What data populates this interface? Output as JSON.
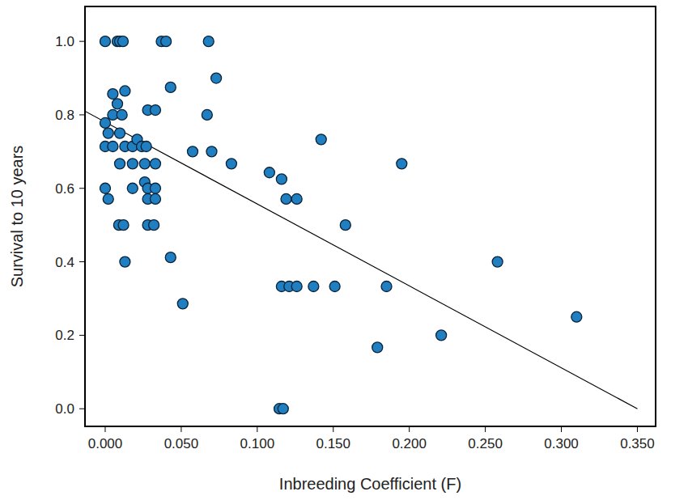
{
  "chart_data": {
    "type": "scatter",
    "x_label": "Inbreeding Coefficient (F)",
    "y_label": "Survival to 10 years",
    "xlim": [
      -0.0133,
      0.362
    ],
    "ylim": [
      -0.048,
      1.095
    ],
    "xticks": [
      {
        "value": 0,
        "label": "0.000"
      },
      {
        "value": 0.05,
        "label": "0.050"
      },
      {
        "value": 0.1,
        "label": "0.100"
      },
      {
        "value": 0.15,
        "label": "0.150"
      },
      {
        "value": 0.2,
        "label": "0.200"
      },
      {
        "value": 0.25,
        "label": "0.250"
      },
      {
        "value": 0.3,
        "label": "0.300"
      },
      {
        "value": 0.35,
        "label": "0.350"
      }
    ],
    "yticks": [
      {
        "value": 0,
        "label": "0.0"
      },
      {
        "value": 0.2,
        "label": "0.2"
      },
      {
        "value": 0.4,
        "label": "0.4"
      },
      {
        "value": 0.6,
        "label": "0.6"
      },
      {
        "value": 0.8,
        "label": "0.8"
      },
      {
        "value": 1,
        "label": "1.0"
      }
    ],
    "grid": false,
    "series": [
      {
        "type": "scatter",
        "color": "#1f7fc1",
        "marker": "circle",
        "x": [
          0,
          0.008,
          0.0096,
          0.0117,
          0.037,
          0.04,
          0.068,
          0.005,
          0.013,
          0.043,
          0.073,
          0,
          0.008,
          0.005,
          0.011,
          0.028,
          0.033,
          0.067,
          0.002,
          0.0096,
          0,
          0.005,
          0.013,
          0.018,
          0.021,
          0.024,
          0.027,
          0.0096,
          0.018,
          0.026,
          0.033,
          0.0575,
          0.07,
          0.083,
          0.026,
          0,
          0.018,
          0.028,
          0.033,
          0.002,
          0.028,
          0.033,
          0.009,
          0.012,
          0.028,
          0.032,
          0.013,
          0.043,
          0.051,
          0.108,
          0.116,
          0.119,
          0.126,
          0.142,
          0.158,
          0.195,
          0.116,
          0.121,
          0.126,
          0.137,
          0.151,
          0.185,
          0.1145,
          0.117,
          0.179,
          0.221,
          0.258,
          0.31
        ],
        "values": [
          1.0,
          1.0,
          1.0,
          1.0,
          1.0,
          1.0,
          1.0,
          0.857,
          0.865,
          0.875,
          0.9,
          0.778,
          0.83,
          0.8,
          0.8,
          0.813,
          0.813,
          0.8,
          0.75,
          0.75,
          0.714,
          0.714,
          0.714,
          0.714,
          0.733,
          0.714,
          0.714,
          0.667,
          0.667,
          0.667,
          0.667,
          0.7,
          0.7,
          0.667,
          0.617,
          0.6,
          0.6,
          0.6,
          0.6,
          0.571,
          0.571,
          0.571,
          0.5,
          0.5,
          0.5,
          0.5,
          0.4,
          0.412,
          0.286,
          0.643,
          0.625,
          0.571,
          0.571,
          0.733,
          0.5,
          0.667,
          0.333,
          0.333,
          0.333,
          0.333,
          0.333,
          0.333,
          0.0,
          0.0,
          0.167,
          0.2,
          0.4,
          0.25
        ]
      },
      {
        "type": "line",
        "color": "#000000",
        "line_style": "solid",
        "x": [
          -0.0133,
          0.35
        ],
        "values": [
          0.81,
          0.0
        ]
      }
    ]
  }
}
